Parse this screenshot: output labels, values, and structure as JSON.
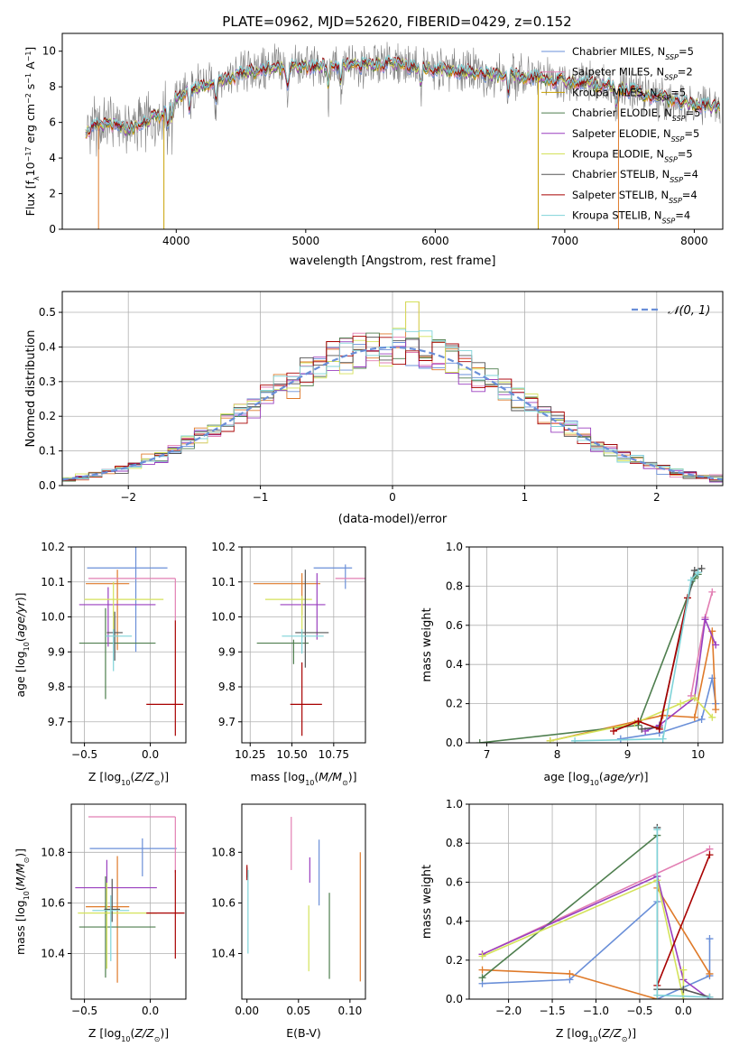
{
  "figure_title": "PLATE=0962, MJD=52620, FIBERID=0429, z=0.152",
  "colors": [
    "#6a8fd8",
    "#df7a2a",
    "#c8a000",
    "#4e7e4e",
    "#9a3fbf",
    "#d4e25a",
    "#555555",
    "#a80000",
    "#7fd3d8",
    "#e27fb3"
  ],
  "chart_data": [
    {
      "id": "spectrum",
      "type": "line",
      "title": "PLATE=0962, MJD=52620, FIBERID=0429, z=0.152",
      "xlabel": "wavelength [Angstrom, rest frame]",
      "ylabel": "Flux [fλ10⁻¹⁷ erg cm⁻² s⁻¹ A⁻¹]",
      "xlim": [
        3120,
        8220
      ],
      "ylim": [
        0,
        11
      ],
      "xticks": [
        4000,
        5000,
        6000,
        7000,
        8000
      ],
      "yticks": [
        0,
        2,
        4,
        6,
        8,
        10
      ],
      "grid": false,
      "legend_position": "top-right",
      "continuum": {
        "x": [
          3300,
          3400,
          3500,
          3600,
          3700,
          3800,
          3900,
          4000,
          4100,
          4200,
          4300,
          4400,
          4500,
          4600,
          4800,
          5000,
          5200,
          5400,
          5600,
          5800,
          6000,
          6200,
          6400,
          6600,
          6800,
          7000,
          7200,
          7400,
          7600,
          7800,
          8000,
          8200
        ],
        "y": [
          5.5,
          5.8,
          5.9,
          5.6,
          5.8,
          6.2,
          6.5,
          7.4,
          7.8,
          8.1,
          8.3,
          8.5,
          8.7,
          8.9,
          9.1,
          9.1,
          9.2,
          9.2,
          9.3,
          9.2,
          9.0,
          8.9,
          8.7,
          8.6,
          8.5,
          8.3,
          8.2,
          8.0,
          7.6,
          7.3,
          7.0,
          6.8
        ]
      },
      "series": [
        {
          "name": "Chabrier MILES, N_SSP=5",
          "color": "#6a8fd8"
        },
        {
          "name": "Salpeter MILES, N_SSP=2",
          "color": "#e27fb3"
        },
        {
          "name": "Kroupa MILES, N_SSP=5",
          "color": "#c8a000"
        },
        {
          "name": "Chabrier ELODIE, N_SSP=5",
          "color": "#4e7e4e"
        },
        {
          "name": "Salpeter ELODIE, N_SSP=5",
          "color": "#9a3fbf"
        },
        {
          "name": "Kroupa ELODIE, N_SSP=5",
          "color": "#d4e25a"
        },
        {
          "name": "Chabrier STELIB, N_SSP=4",
          "color": "#555555"
        },
        {
          "name": "Salpeter STELIB, N_SSP=4",
          "color": "#a80000"
        },
        {
          "name": "Kroupa STELIB, N_SSP=4",
          "color": "#7fd3d8"
        }
      ]
    },
    {
      "id": "residuals",
      "type": "histogram",
      "xlabel": "(data-model)/error",
      "ylabel": "Normed distribution",
      "xlim": [
        -2.5,
        2.5
      ],
      "ylim": [
        0,
        0.56
      ],
      "xticks": [
        -2,
        -1,
        0,
        1,
        2
      ],
      "xtick_labels": [
        "−2",
        "−1",
        "0",
        "1",
        "2"
      ],
      "yticks": [
        0.0,
        0.1,
        0.2,
        0.3,
        0.4,
        0.5
      ],
      "ytick_labels": [
        "0.0",
        "0.1",
        "0.2",
        "0.3",
        "0.4",
        "0.5"
      ],
      "grid": true,
      "legend_position": "top-right",
      "reference": {
        "name": "𝒩(0, 1)",
        "type": "gaussian",
        "mean": 0,
        "sigma": 1,
        "color": "#6a8fd8"
      },
      "bin_width": 0.1,
      "colors": [
        "#6a8fd8",
        "#df7a2a",
        "#e27fb3",
        "#4e7e4e",
        "#9a3fbf",
        "#d4e25a",
        "#555555",
        "#a80000",
        "#7fd3d8"
      ]
    },
    {
      "id": "age-vs-Z",
      "type": "errorbar",
      "xlabel": "Z [log10(Z/Z⊙)]",
      "ylabel": "age [log10(age/yr)]",
      "xlim": [
        -0.6,
        0.27
      ],
      "ylim": [
        9.64,
        10.2
      ],
      "xticks": [
        -0.5,
        0.0
      ],
      "xtick_labels": [
        "−0.5",
        "0.0"
      ],
      "yticks": [
        9.7,
        9.8,
        9.9,
        10.0,
        10.1,
        10.2
      ],
      "ytick_labels": [
        "9.7",
        "9.8",
        "9.9",
        "10.0",
        "10.1",
        "10.2"
      ],
      "grid": true,
      "points": [
        {
          "x": -0.11,
          "y": 10.14,
          "xerr": [
            0.37,
            0.24
          ],
          "yerr": [
            0.24,
            0.06
          ],
          "color": "#6a8fd8"
        },
        {
          "x": -0.25,
          "y": 10.095,
          "xerr": [
            0.24,
            0.09
          ],
          "yerr": [
            0.19,
            0.04
          ],
          "color": "#df7a2a"
        },
        {
          "x": 0.19,
          "y": 10.11,
          "xerr": [
            0.66,
            0
          ],
          "yerr": [
            0.12,
            0
          ],
          "color": "#e27fb3"
        },
        {
          "x": -0.34,
          "y": 9.925,
          "xerr": [
            0.2,
            0.38
          ],
          "yerr": [
            0.16,
            0.1
          ],
          "color": "#4e7e4e"
        },
        {
          "x": -0.32,
          "y": 10.035,
          "xerr": [
            0.22,
            0.36
          ],
          "yerr": [
            0.12,
            0.05
          ],
          "color": "#9a3fbf"
        },
        {
          "x": -0.28,
          "y": 10.05,
          "xerr": [
            0.22,
            0.38
          ],
          "yerr": [
            0.09,
            0.05
          ],
          "color": "#d4e25a"
        },
        {
          "x": -0.27,
          "y": 9.955,
          "xerr": [
            0.06,
            0.06
          ],
          "yerr": [
            0.08,
            0.06
          ],
          "color": "#555555"
        },
        {
          "x": 0.19,
          "y": 9.75,
          "xerr": [
            0.22,
            0.06
          ],
          "yerr": [
            0.09,
            0.24
          ],
          "color": "#a80000"
        },
        {
          "x": -0.28,
          "y": 9.945,
          "xerr": [
            0.06,
            0.14
          ],
          "yerr": [
            0.1,
            0.02
          ],
          "color": "#7fd3d8"
        }
      ]
    },
    {
      "id": "age-vs-mass",
      "type": "errorbar",
      "xlabel": "mass [log10(M/M⊙)]",
      "ylabel": "",
      "xlim": [
        10.2,
        10.94
      ],
      "ylim": [
        9.64,
        10.2
      ],
      "xticks": [
        10.25,
        10.5,
        10.75
      ],
      "xtick_labels": [
        "10.25",
        "10.50",
        "10.75"
      ],
      "yticks": [
        9.7,
        9.8,
        9.9,
        10.0,
        10.1,
        10.2
      ],
      "ytick_labels": [
        "9.7",
        "9.8",
        "9.9",
        "10.0",
        "10.1",
        "10.2"
      ],
      "grid": true,
      "points": [
        {
          "x": 10.82,
          "y": 10.14,
          "xerr": [
            0.19,
            0.04
          ],
          "yerr": [
            0.06,
            0.01
          ],
          "color": "#6a8fd8"
        },
        {
          "x": 10.56,
          "y": 10.095,
          "xerr": [
            0.29,
            0.11
          ],
          "yerr": [
            0.09,
            0.03
          ],
          "color": "#df7a2a"
        },
        {
          "x": 10.94,
          "y": 10.11,
          "xerr": [
            0.18,
            0
          ],
          "yerr": [
            0.11,
            0
          ],
          "color": "#e27fb3"
        },
        {
          "x": 10.51,
          "y": 9.925,
          "xerr": [
            0.22,
            0.09
          ],
          "yerr": [
            0.06,
            0.01
          ],
          "color": "#4e7e4e"
        },
        {
          "x": 10.65,
          "y": 10.035,
          "xerr": [
            0.22,
            0.05
          ],
          "yerr": [
            0.1,
            0.09
          ],
          "color": "#9a3fbf"
        },
        {
          "x": 10.56,
          "y": 10.05,
          "xerr": [
            0.22,
            0.06
          ],
          "yerr": [
            0.11,
            0.01
          ],
          "color": "#d4e25a"
        },
        {
          "x": 10.58,
          "y": 9.955,
          "xerr": [
            0.06,
            0.14
          ],
          "yerr": [
            0.1,
            0.18
          ],
          "color": "#555555"
        },
        {
          "x": 10.56,
          "y": 9.75,
          "xerr": [
            0.07,
            0.12
          ],
          "yerr": [
            0.09,
            0.12
          ],
          "color": "#a80000"
        },
        {
          "x": 10.56,
          "y": 9.945,
          "xerr": [
            0.12,
            0.13
          ],
          "yerr": [
            0.05,
            0.02
          ],
          "color": "#7fd3d8"
        }
      ]
    },
    {
      "id": "mass-weight-vs-age",
      "type": "line",
      "xlabel": "age [log10(age/yr)]",
      "ylabel": "mass weight",
      "xlim": [
        6.75,
        10.35
      ],
      "ylim": [
        0,
        1
      ],
      "xticks": [
        7,
        8,
        9,
        10
      ],
      "yticks": [
        0.0,
        0.2,
        0.4,
        0.6,
        0.8,
        1.0
      ],
      "ytick_labels": [
        "0.0",
        "0.2",
        "0.4",
        "0.6",
        "0.8",
        "1.0"
      ],
      "grid": true,
      "series": [
        {
          "color": "#6a8fd8",
          "x": [
            8.9,
            9.45,
            10.05,
            10.2,
            10.25
          ],
          "y": [
            0.02,
            0.05,
            0.12,
            0.33,
            0.2
          ]
        },
        {
          "color": "#df7a2a",
          "x": [
            7.9,
            9.5,
            9.95,
            10.2,
            10.25
          ],
          "y": [
            0.01,
            0.14,
            0.13,
            0.57,
            0.17
          ]
        },
        {
          "color": "#e27fb3",
          "x": [
            9.9,
            10.1,
            10.2
          ],
          "y": [
            0.24,
            0.64,
            0.77
          ]
        },
        {
          "color": "#4e7e4e",
          "x": [
            6.9,
            9.15,
            9.95,
            10.0
          ],
          "y": [
            0.0,
            0.09,
            0.84,
            0.86
          ]
        },
        {
          "color": "#9a3fbf",
          "x": [
            9.25,
            9.45,
            9.95,
            10.1,
            10.25
          ],
          "y": [
            0.06,
            0.09,
            0.23,
            0.63,
            0.5
          ]
        },
        {
          "color": "#d4e25a",
          "x": [
            7.9,
            9.1,
            9.75,
            9.95,
            10.2
          ],
          "y": [
            0.01,
            0.1,
            0.2,
            0.23,
            0.13
          ]
        },
        {
          "color": "#555555",
          "x": [
            9.2,
            9.45,
            9.95,
            10.05
          ],
          "y": [
            0.07,
            0.08,
            0.88,
            0.89
          ]
        },
        {
          "color": "#a80000",
          "x": [
            8.8,
            9.15,
            9.45,
            9.85
          ],
          "y": [
            0.06,
            0.11,
            0.07,
            0.74
          ]
        },
        {
          "color": "#7fd3d8",
          "x": [
            8.25,
            9.5,
            9.9,
            10.0
          ],
          "y": [
            0.01,
            0.02,
            0.83,
            0.87
          ]
        }
      ]
    },
    {
      "id": "mass-vs-Z",
      "type": "errorbar",
      "xlabel": "Z [log10(Z/Z⊙)]",
      "ylabel": "mass [log10(M/M⊙)]",
      "xlim": [
        -0.6,
        0.27
      ],
      "ylim": [
        10.22,
        10.99
      ],
      "xticks": [
        -0.5,
        0.0
      ],
      "xtick_labels": [
        "−0.5",
        "0.0"
      ],
      "yticks": [
        10.4,
        10.6,
        10.8
      ],
      "ytick_labels": [
        "10.4",
        "10.6",
        "10.8"
      ],
      "grid": true,
      "points": [
        {
          "x": -0.06,
          "y": 10.815,
          "xerr": [
            0.4,
            0.26
          ],
          "yerr": [
            0.11,
            0.04
          ],
          "color": "#6a8fd8"
        },
        {
          "x": -0.25,
          "y": 10.585,
          "xerr": [
            0.24,
            0.09
          ],
          "yerr": [
            0.3,
            0.2
          ],
          "color": "#df7a2a"
        },
        {
          "x": 0.19,
          "y": 10.94,
          "xerr": [
            0.66,
            0
          ],
          "yerr": [
            0.22,
            0
          ],
          "color": "#e27fb3"
        },
        {
          "x": -0.34,
          "y": 10.505,
          "xerr": [
            0.2,
            0.38
          ],
          "yerr": [
            0.2,
            0.2
          ],
          "color": "#4e7e4e"
        },
        {
          "x": -0.33,
          "y": 10.66,
          "xerr": [
            0.24,
            0.38
          ],
          "yerr": [
            0.11,
            0.11
          ],
          "color": "#9a3fbf"
        },
        {
          "x": -0.33,
          "y": 10.56,
          "xerr": [
            0.22,
            0.38
          ],
          "yerr": [
            0.22,
            0.12
          ],
          "color": "#d4e25a"
        },
        {
          "x": -0.29,
          "y": 10.575,
          "xerr": [
            0.06,
            0.06
          ],
          "yerr": [
            0.05,
            0.12
          ],
          "color": "#555555"
        },
        {
          "x": 0.19,
          "y": 10.56,
          "xerr": [
            0.22,
            0.07
          ],
          "yerr": [
            0.18,
            0.17
          ],
          "color": "#a80000"
        },
        {
          "x": -0.3,
          "y": 10.57,
          "xerr": [
            0.14,
            0.14
          ],
          "yerr": [
            0.2,
            0.06
          ],
          "color": "#7fd3d8"
        }
      ]
    },
    {
      "id": "mass-vs-EBV",
      "type": "errorbar",
      "xlabel": "E(B-V)",
      "ylabel": "",
      "xlim": [
        -0.005,
        0.115
      ],
      "ylim": [
        10.22,
        10.99
      ],
      "xticks": [
        0.0,
        0.05,
        0.1
      ],
      "xtick_labels": [
        "0.00",
        "0.05",
        "0.10"
      ],
      "yticks": [
        10.4,
        10.6,
        10.8
      ],
      "ytick_labels": [
        "10.4",
        "10.6",
        "10.8"
      ],
      "grid": false,
      "points": [
        {
          "x": 0.07,
          "y": 10.75,
          "yerr": [
            0.16,
            0.1
          ],
          "color": "#6a8fd8"
        },
        {
          "x": 0.11,
          "y": 10.55,
          "yerr": [
            0.26,
            0.25
          ],
          "color": "#df7a2a"
        },
        {
          "x": 0.043,
          "y": 10.84,
          "yerr": [
            0.11,
            0.1
          ],
          "color": "#e27fb3"
        },
        {
          "x": 0.08,
          "y": 10.5,
          "yerr": [
            0.2,
            0.14
          ],
          "color": "#4e7e4e"
        },
        {
          "x": 0.061,
          "y": 10.73,
          "yerr": [
            0.05,
            0.05
          ],
          "color": "#9a3fbf"
        },
        {
          "x": 0.06,
          "y": 10.5,
          "yerr": [
            0.17,
            0.09
          ],
          "color": "#d4e25a"
        },
        {
          "x": 0.0,
          "y": 10.72,
          "yerr": [
            0.02,
            0.02
          ],
          "color": "#555555"
        },
        {
          "x": 0.0,
          "y": 10.72,
          "yerr": [
            0.03,
            0.03
          ],
          "color": "#a80000"
        },
        {
          "x": 0.001,
          "y": 10.56,
          "yerr": [
            0.16,
            0.17
          ],
          "color": "#7fd3d8"
        }
      ]
    },
    {
      "id": "mass-weight-vs-Z",
      "type": "line",
      "xlabel": "Z [log10(Z/Z⊙)]",
      "ylabel": "mass weight",
      "xlim": [
        -2.45,
        0.45
      ],
      "ylim": [
        0,
        1
      ],
      "xticks": [
        -2.0,
        -1.5,
        -1.0,
        -0.5,
        0.0
      ],
      "xtick_labels": [
        "−2.0",
        "−1.5",
        "−1.0",
        "−0.5",
        "0.0"
      ],
      "yticks": [
        0.0,
        0.2,
        0.4,
        0.6,
        0.8,
        1.0
      ],
      "ytick_labels": [
        "0.0",
        "0.2",
        "0.4",
        "0.6",
        "0.8",
        "1.0"
      ],
      "grid": true,
      "series": [
        {
          "color": "#6a8fd8",
          "x": [
            -2.3,
            -1.3,
            -0.3,
            -0.3,
            0.3,
            0.3
          ],
          "y": [
            0.08,
            0.1,
            0.5,
            0.0,
            0.12,
            0.31
          ]
        },
        {
          "color": "#df7a2a",
          "x": [
            -2.3,
            -1.3,
            -0.3,
            -0.3,
            0.3
          ],
          "y": [
            0.15,
            0.13,
            0.0,
            0.57,
            0.13
          ]
        },
        {
          "color": "#e27fb3",
          "x": [
            -2.3,
            0.3
          ],
          "y": [
            0.23,
            0.77
          ]
        },
        {
          "color": "#4e7e4e",
          "x": [
            -2.3,
            -0.3
          ],
          "y": [
            0.11,
            0.84
          ]
        },
        {
          "color": "#9a3fbf",
          "x": [
            -2.3,
            -0.3,
            0.0,
            0.3
          ],
          "y": [
            0.23,
            0.63,
            0.1,
            0.0
          ]
        },
        {
          "color": "#d4e25a",
          "x": [
            -2.3,
            -0.3,
            0.0,
            0.0
          ],
          "y": [
            0.22,
            0.61,
            0.0,
            0.15
          ]
        },
        {
          "color": "#555555",
          "x": [
            -0.3,
            -0.3,
            0.0,
            0.3
          ],
          "y": [
            0.88,
            0.05,
            0.05,
            0.01
          ]
        },
        {
          "color": "#a80000",
          "x": [
            -0.3,
            0.3
          ],
          "y": [
            0.07,
            0.74
          ]
        },
        {
          "color": "#7fd3d8",
          "x": [
            -0.3,
            -0.3,
            0.3
          ],
          "y": [
            0.87,
            0.02,
            0.01
          ]
        }
      ]
    }
  ]
}
